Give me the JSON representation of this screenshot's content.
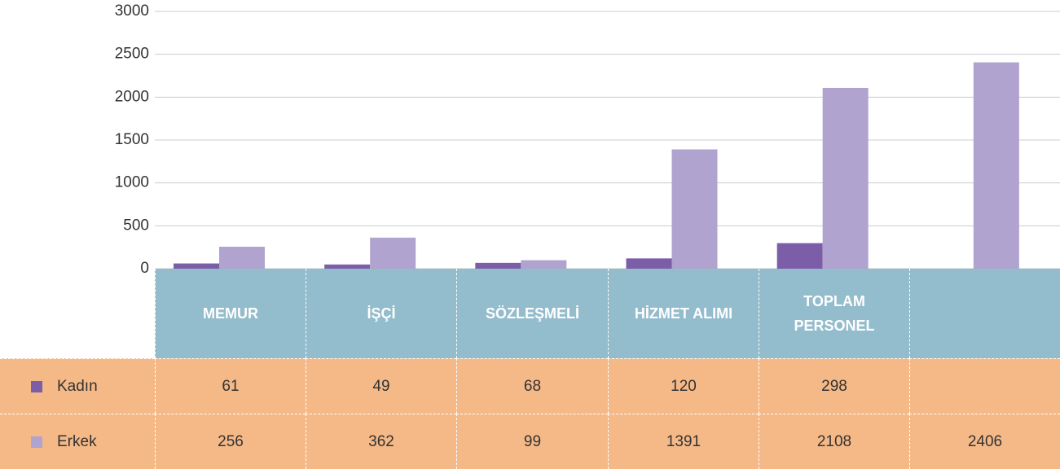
{
  "chart_data": {
    "type": "bar",
    "categories": [
      "MEMUR",
      "İŞÇİ",
      "SÖZLEŞMELİ",
      "HİZMET ALIMI",
      "TOPLAM PERSONEL",
      null
    ],
    "series": [
      {
        "name": "Kadın",
        "color": "#7b5ea7",
        "values": [
          61,
          49,
          68,
          120,
          298,
          null
        ]
      },
      {
        "name": "Erkek",
        "color": "#b0a3cf",
        "values": [
          256,
          362,
          99,
          1391,
          2108,
          2406
        ]
      }
    ],
    "ylim": [
      0,
      3000
    ],
    "yticks": [
      0,
      500,
      1000,
      1500,
      2000,
      2500,
      3000
    ],
    "grid": true
  }
}
